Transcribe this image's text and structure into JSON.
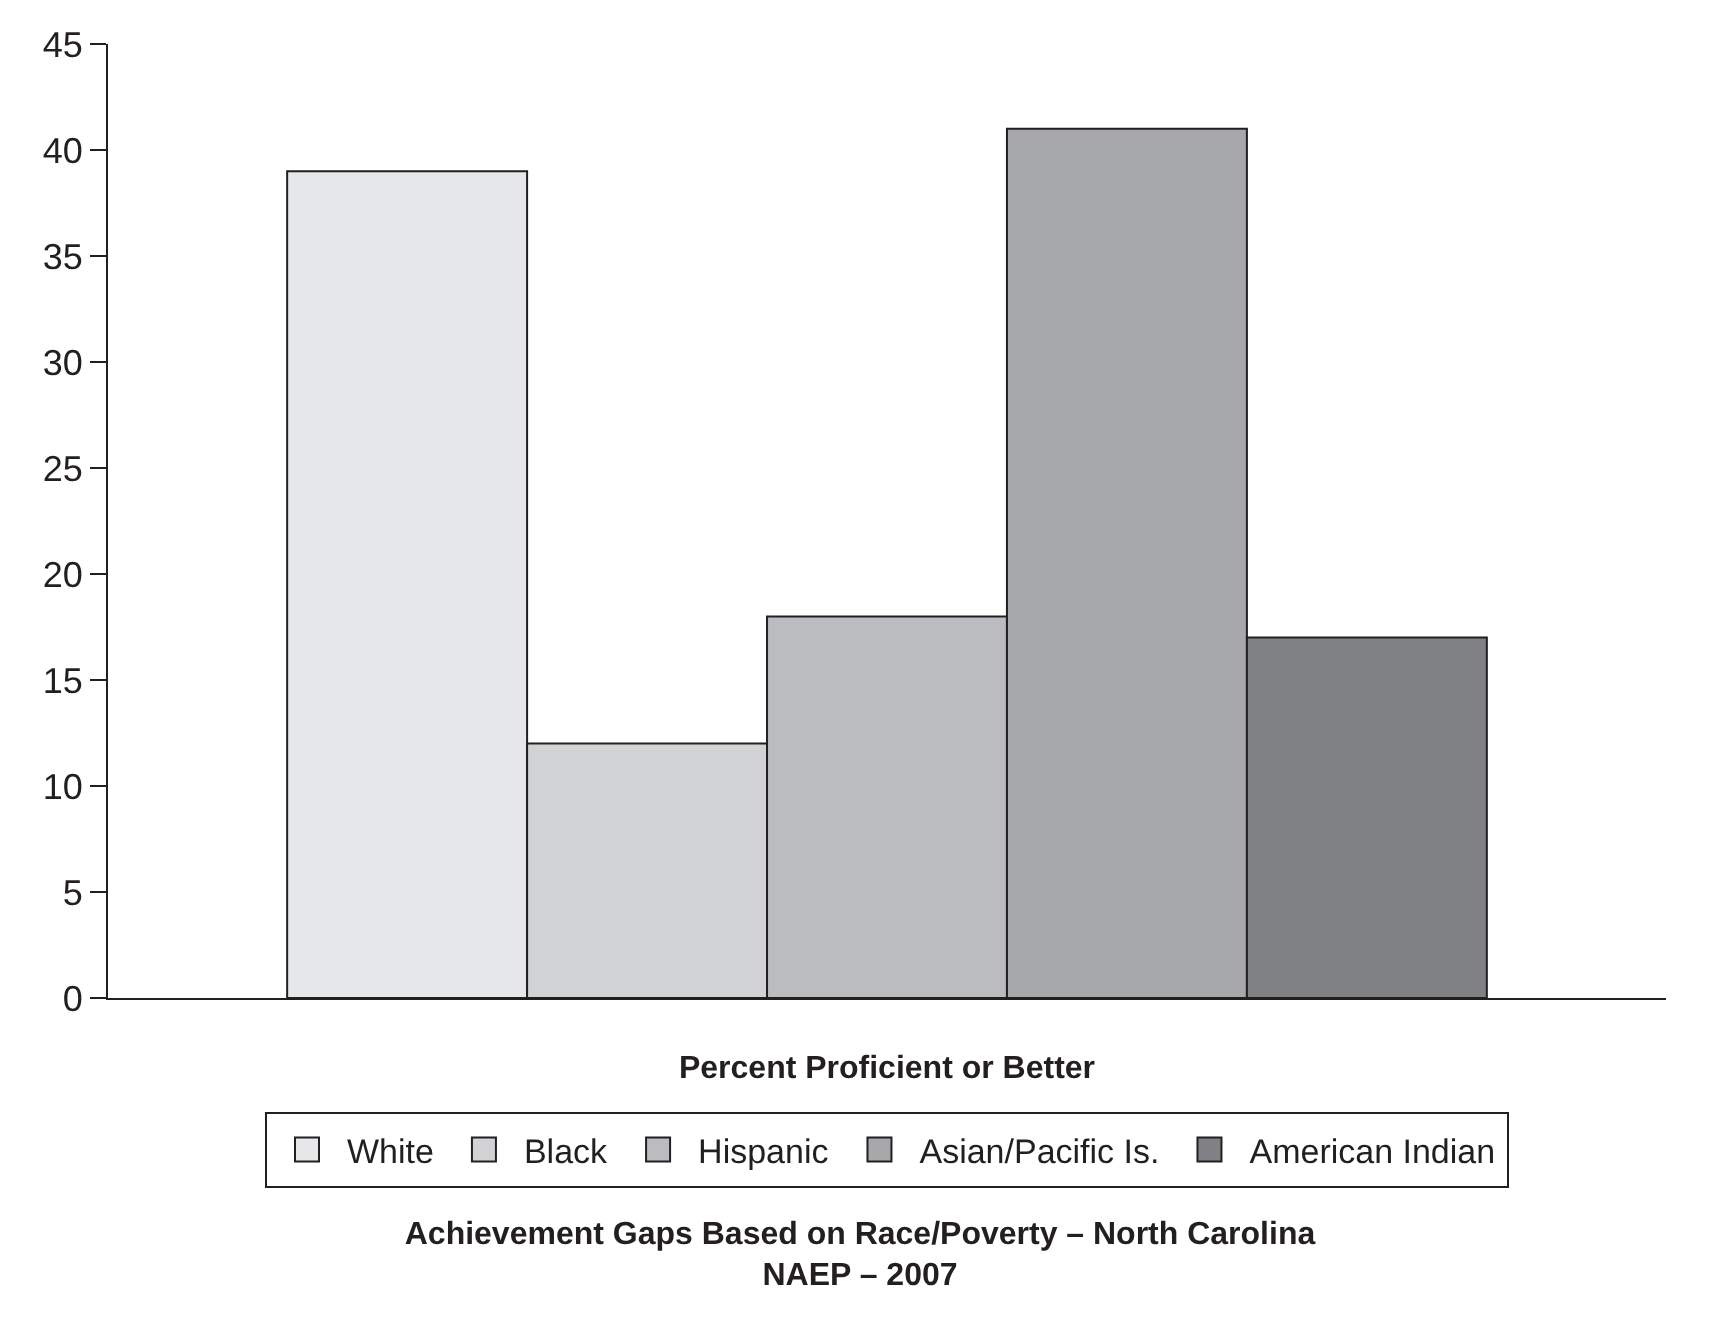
{
  "chart_data": {
    "type": "bar",
    "title": "Achievement Gaps Based on Race/Poverty – North Carolina\nNAEP – 2007",
    "xlabel": "Percent Proficient or Better",
    "categories": [
      null
    ],
    "series": [
      {
        "name": "White",
        "color": "#e6e7e9",
        "values": [
          39
        ]
      },
      {
        "name": "Black",
        "color": "#d1d2d4",
        "values": [
          12
        ]
      },
      {
        "name": "Hispanic",
        "color": "#bbbcbf",
        "values": [
          18
        ]
      },
      {
        "name": "Asian/Pacific Is.",
        "color": "#a7a8ac",
        "values": [
          41
        ]
      },
      {
        "name": "American Indian",
        "color": "#808184",
        "values": [
          17
        ]
      }
    ],
    "ylim": [
      0,
      45
    ],
    "yticks": [
      0,
      5,
      10,
      15,
      20,
      25,
      30,
      35,
      40,
      45
    ],
    "grid": false,
    "legend": "bottom"
  }
}
